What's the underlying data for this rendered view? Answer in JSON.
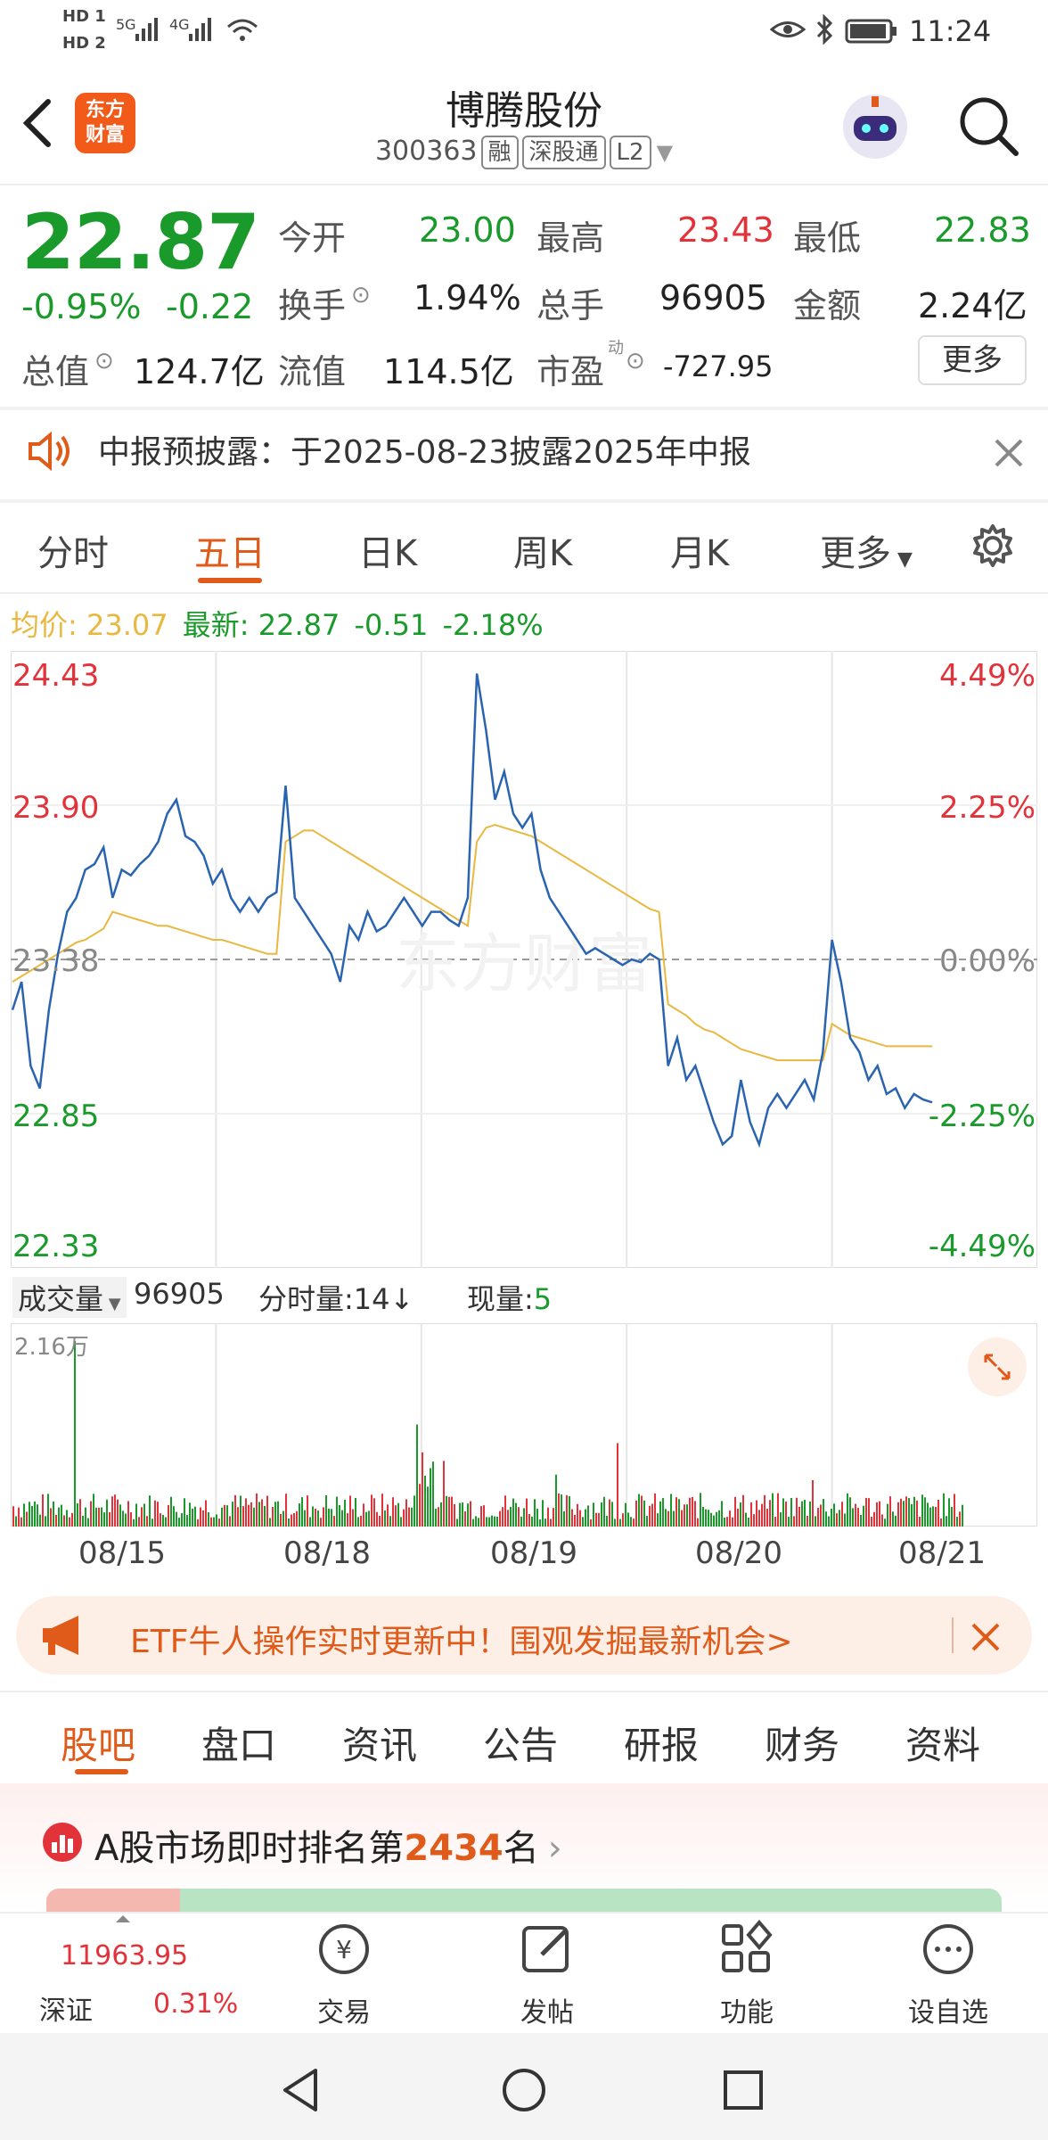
{
  "status": {
    "hd1": "HD 1",
    "hd2": "HD 2",
    "net1": "5G",
    "net2": "4G",
    "time": "11:24"
  },
  "header": {
    "title": "博腾股份",
    "code": "300363",
    "tags": [
      "融",
      "深股通",
      "L2"
    ],
    "logo_text": "东方财富"
  },
  "quote": {
    "price": "22.87",
    "change_pct": "-0.95%",
    "change": "-0.22",
    "rows": [
      [
        {
          "label": "今开",
          "value": "23.00"
        },
        {
          "label": "最高",
          "value": "23.43"
        },
        {
          "label": "最低",
          "value": "22.83"
        }
      ],
      [
        {
          "label": "换手",
          "value": "1.94%"
        },
        {
          "label": "总手",
          "value": "96905"
        },
        {
          "label": "金额",
          "value": "2.24亿"
        }
      ],
      [
        {
          "label": "总值",
          "value": "124.7亿"
        },
        {
          "label": "流值",
          "value": "114.5亿"
        },
        {
          "label": "市盈",
          "value": "-727.95",
          "sup": "动"
        }
      ]
    ],
    "more": "更多"
  },
  "notice": {
    "text": "中报预披露：于2025-08-23披露2025年中报"
  },
  "ktabs": [
    {
      "label": "分时"
    },
    {
      "label": "五日"
    },
    {
      "label": "日K"
    },
    {
      "label": "周K"
    },
    {
      "label": "月K"
    },
    {
      "label": "更多"
    }
  ],
  "legend": {
    "avg_label": "均价:",
    "avg": "23.07",
    "last_label": "最新:",
    "last": "22.87",
    "chg": "-0.51",
    "chg_pct": "-2.18%"
  },
  "chart_data": {
    "type": "line",
    "y_left_ticks": [
      "24.43",
      "23.90",
      "23.38",
      "22.85",
      "22.33"
    ],
    "y_right_ticks": [
      "4.49%",
      "2.25%",
      "0.00%",
      "-2.25%",
      "-4.49%"
    ],
    "x_ticks": [
      "08/15",
      "08/18",
      "08/19",
      "08/20",
      "08/21"
    ],
    "ylim": [
      22.33,
      24.43
    ],
    "series": [],
    "watermark": "东方财富",
    "price": [
      23.2,
      23.3,
      23.0,
      22.92,
      23.2,
      23.4,
      23.55,
      23.6,
      23.7,
      23.72,
      23.78,
      23.6,
      23.7,
      23.68,
      23.72,
      23.75,
      23.8,
      23.9,
      23.95,
      23.82,
      23.8,
      23.75,
      23.65,
      23.7,
      23.6,
      23.55,
      23.6,
      23.55,
      23.6,
      23.62,
      24.0,
      23.6,
      23.55,
      23.5,
      23.45,
      23.4,
      23.3,
      23.5,
      23.45,
      23.55,
      23.48,
      23.5,
      23.55,
      23.6,
      23.55,
      23.5,
      23.55,
      23.55,
      23.52,
      23.5,
      23.6,
      24.4,
      24.2,
      23.95,
      24.05,
      23.9,
      23.85,
      23.9,
      23.7,
      23.6,
      23.55,
      23.5,
      23.45,
      23.4,
      23.42,
      23.4,
      23.38,
      23.36,
      23.38,
      23.37,
      23.4,
      23.38,
      23.0,
      23.1,
      22.95,
      23.0,
      22.9,
      22.8,
      22.72,
      22.75,
      22.95,
      22.8,
      22.72,
      22.85,
      22.9,
      22.85,
      22.9,
      22.95,
      22.88,
      23.05,
      23.45,
      23.3,
      23.1,
      23.05,
      22.95,
      23.0,
      22.9,
      22.92,
      22.85,
      22.9,
      22.88,
      22.87
    ],
    "avg": [
      23.3,
      23.32,
      23.34,
      23.36,
      23.38,
      23.4,
      23.42,
      23.44,
      23.45,
      23.47,
      23.49,
      23.55,
      23.54,
      23.53,
      23.52,
      23.51,
      23.5,
      23.5,
      23.49,
      23.48,
      23.47,
      23.46,
      23.45,
      23.45,
      23.44,
      23.43,
      23.42,
      23.41,
      23.4,
      23.4,
      23.8,
      23.82,
      23.84,
      23.84,
      23.82,
      23.8,
      23.78,
      23.76,
      23.74,
      23.72,
      23.7,
      23.68,
      23.66,
      23.64,
      23.62,
      23.6,
      23.58,
      23.56,
      23.54,
      23.52,
      23.5,
      23.8,
      23.85,
      23.86,
      23.85,
      23.84,
      23.83,
      23.82,
      23.8,
      23.78,
      23.76,
      23.74,
      23.72,
      23.7,
      23.68,
      23.66,
      23.64,
      23.62,
      23.6,
      23.58,
      23.56,
      23.55,
      23.22,
      23.2,
      23.18,
      23.15,
      23.13,
      23.12,
      23.1,
      23.08,
      23.06,
      23.05,
      23.04,
      23.03,
      23.02,
      23.02,
      23.02,
      23.02,
      23.02,
      23.02,
      23.15,
      23.13,
      23.11,
      23.1,
      23.09,
      23.08,
      23.07,
      23.07,
      23.07,
      23.07,
      23.07,
      23.07
    ]
  },
  "volume": {
    "label": "成交量",
    "value": "96905",
    "minute_label": "分时量:",
    "minute_value": "14",
    "now_label": "现量:",
    "now_value": "5",
    "max_label": "2.16万"
  },
  "banner": {
    "text": "ETF牛人操作实时更新中！围观发掘最新机会>"
  },
  "btabs": [
    {
      "label": "股吧"
    },
    {
      "label": "盘口"
    },
    {
      "label": "资讯"
    },
    {
      "label": "公告"
    },
    {
      "label": "研报"
    },
    {
      "label": "财务"
    },
    {
      "label": "资料"
    }
  ],
  "rank": {
    "prefix": "A股市场即时排名第",
    "num": "2434",
    "suffix": "名"
  },
  "bottom": {
    "index_value": "11963.95",
    "index_name": "深证",
    "index_chg": "0.31%",
    "items": [
      {
        "label": "交易"
      },
      {
        "label": "发帖"
      },
      {
        "label": "功能"
      },
      {
        "label": "设自选"
      }
    ]
  },
  "colors": {
    "up": "#e2323a",
    "down": "#1a9a2b",
    "accent": "#e05a1a",
    "price_line": "#2a64b0",
    "avg_line": "#e8b840"
  }
}
